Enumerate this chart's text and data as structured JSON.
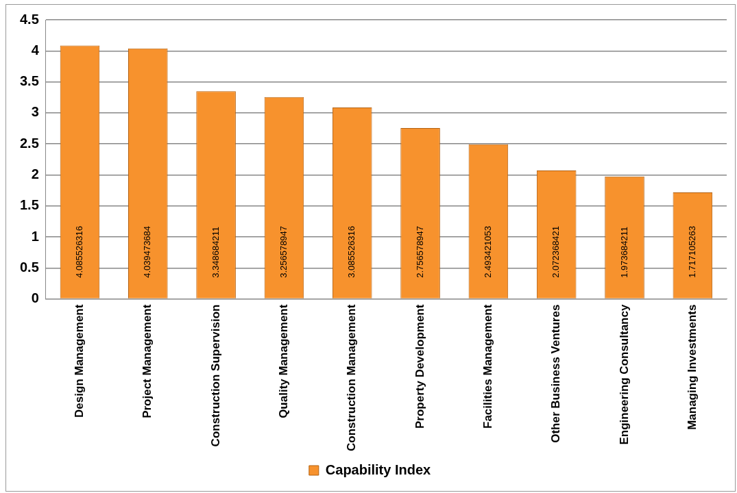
{
  "chart_data": {
    "type": "bar",
    "categories": [
      "Design Management",
      "Project Management",
      "Construction Supervision",
      "Quality Management",
      "Construction Management",
      "Property Development",
      "Facilities Management",
      "Other Business Ventures",
      "Engineering Consultancy",
      "Managing Investments"
    ],
    "series": [
      {
        "name": "Capability Index",
        "color": "#f7922d",
        "values": [
          4.085526316,
          4.039473684,
          3.348684211,
          3.256578947,
          3.085526316,
          2.756578947,
          2.493421053,
          2.072368421,
          1.973684211,
          1.717105263
        ]
      }
    ],
    "ylim": [
      0,
      4.5
    ],
    "yticks": [
      0,
      0.5,
      1,
      1.5,
      2,
      2.5,
      3,
      3.5,
      4,
      4.5
    ],
    "grid": "y",
    "legend": "bottom",
    "data_labels": true
  }
}
